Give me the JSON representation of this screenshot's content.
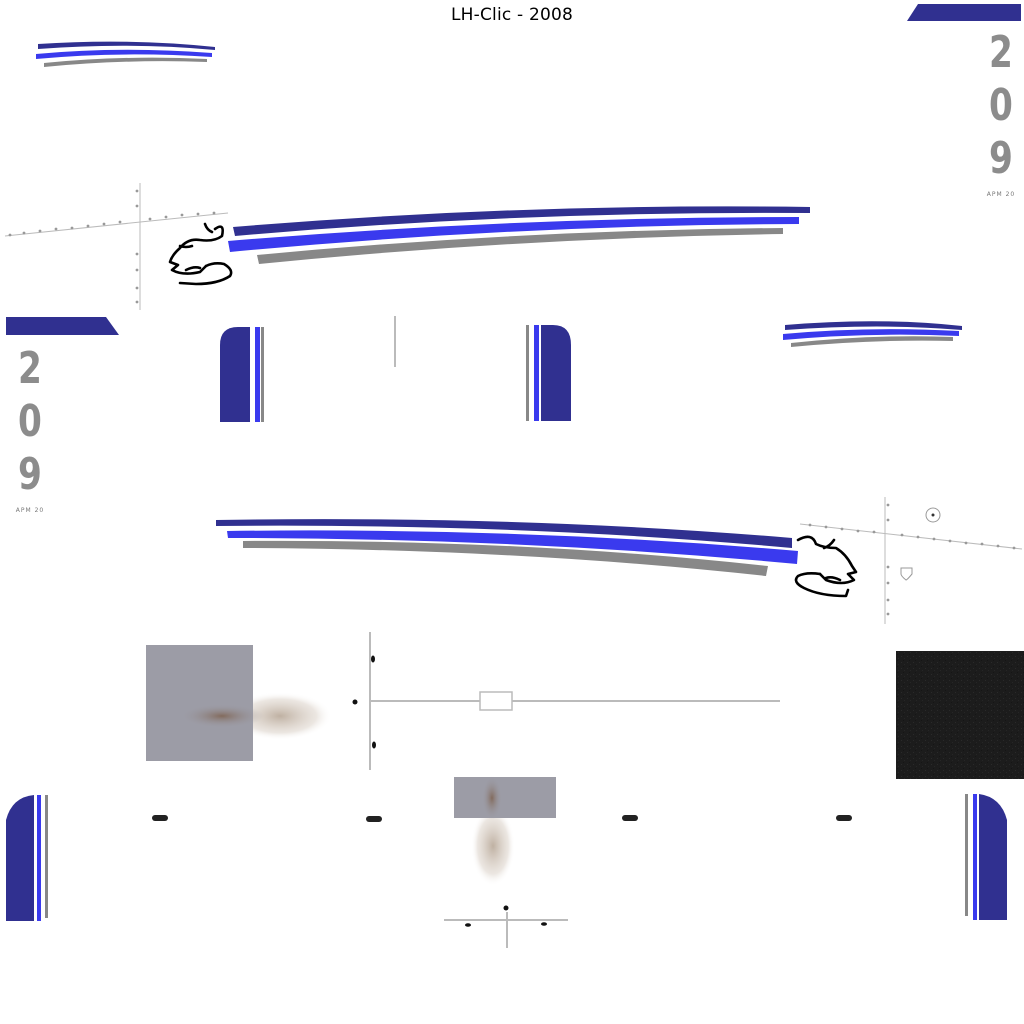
{
  "title": "LH-Clic - 2008",
  "livery": {
    "number_digits": [
      "2",
      "0",
      "9"
    ],
    "number_subtext": "APM 20",
    "colors": {
      "dark_blue": "#303090",
      "bright_blue": "#3a3aee",
      "gray": "#888888",
      "panel_gray": "#9c9ca6",
      "texture_dark": "#1c1c1c",
      "line_gray": "#bbbbbb"
    }
  }
}
